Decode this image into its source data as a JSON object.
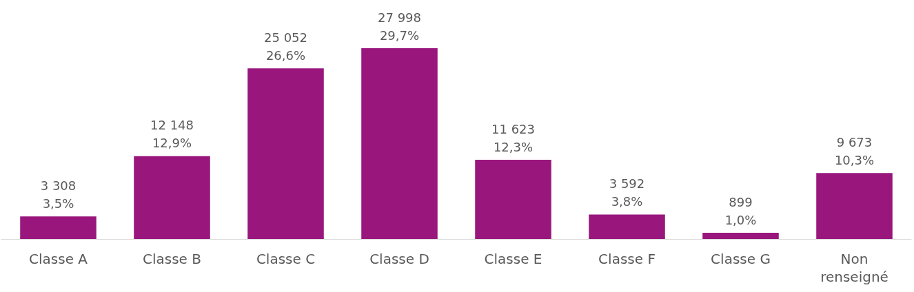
{
  "chart_data": {
    "type": "bar",
    "categories": [
      "Classe A",
      "Classe B",
      "Classe C",
      "Classe D",
      "Classe E",
      "Classe F",
      "Classe G",
      "Non\nrenseigné"
    ],
    "values": [
      3308,
      12148,
      25052,
      27998,
      11623,
      3592,
      899,
      9673
    ],
    "value_labels": [
      "3 308\n3,5%",
      "12 148\n12,9%",
      "25 052\n26,6%",
      "27 998\n29,7%",
      "11 623\n12,3%",
      "3 592\n3,8%",
      "899\n1,0%",
      "9 673\n10,3%"
    ],
    "color": "#99177d"
  }
}
